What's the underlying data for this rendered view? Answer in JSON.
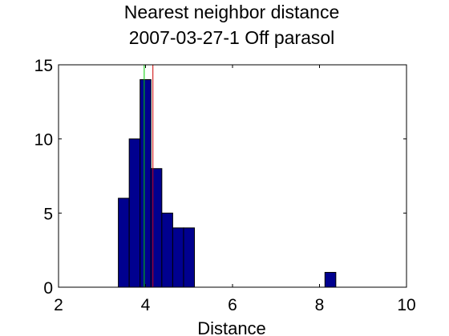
{
  "chart_data": {
    "type": "bar",
    "title": "Nearest neighbor distance",
    "subtitle": "2007-03-27-1 Off parasol",
    "xlabel": "Distance",
    "ylabel": "",
    "xlim": [
      2,
      10
    ],
    "ylim": [
      0,
      15
    ],
    "xticks": [
      "2",
      "4",
      "6",
      "8",
      "10"
    ],
    "yticks": [
      "0",
      "5",
      "10",
      "15"
    ],
    "grid": false,
    "bin_width": 0.25,
    "bars": [
      {
        "x": 3.5,
        "value": 6
      },
      {
        "x": 3.75,
        "value": 10
      },
      {
        "x": 4.0,
        "value": 14
      },
      {
        "x": 4.25,
        "value": 8
      },
      {
        "x": 4.5,
        "value": 5
      },
      {
        "x": 4.75,
        "value": 4
      },
      {
        "x": 5.0,
        "value": 4
      },
      {
        "x": 8.25,
        "value": 1
      }
    ],
    "reference_lines": [
      {
        "x": 3.97,
        "color": "#00cc00"
      },
      {
        "x": 4.17,
        "color": "#cc0000"
      }
    ],
    "colors": {
      "bar_fill": "#00008f",
      "bar_edge": "#000000"
    }
  }
}
